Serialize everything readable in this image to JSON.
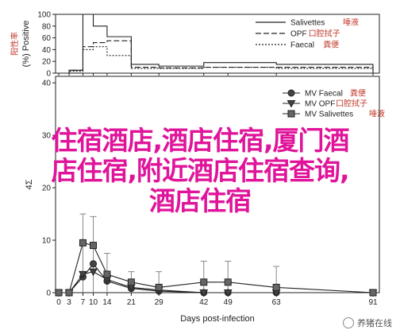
{
  "chart_data": [
    {
      "type": "line",
      "step": true,
      "ylabel": "(%) Positive",
      "ylabel_note": "阳性率",
      "ylim": [
        0,
        100
      ],
      "yticks": [
        0,
        20,
        40,
        60,
        80,
        100
      ],
      "x": [
        0,
        3,
        7,
        10,
        14,
        21,
        29,
        42,
        49,
        63,
        91
      ],
      "series": [
        {
          "name": "Salivettes",
          "note": "唾液",
          "style": "solid",
          "values": [
            0,
            5,
            100,
            80,
            62,
            15,
            12,
            18,
            18,
            15,
            0
          ]
        },
        {
          "name": "OPF",
          "note": "口腔拭子",
          "style": "dashed",
          "values": [
            0,
            5,
            45,
            52,
            55,
            10,
            9,
            10,
            10,
            10,
            0
          ]
        },
        {
          "name": "Faecal",
          "note": "粪便",
          "style": "dotted",
          "values": [
            0,
            3,
            40,
            45,
            30,
            8,
            8,
            10,
            10,
            8,
            0
          ]
        }
      ]
    },
    {
      "type": "line",
      "xlabel": "Days post-infection",
      "ylabel": "4Σ",
      "ylim": [
        0,
        40
      ],
      "yticks": [
        0,
        10,
        20,
        30,
        40
      ],
      "x": [
        0,
        3,
        7,
        10,
        14,
        21,
        29,
        42,
        49,
        63,
        91
      ],
      "series": [
        {
          "name": "MV Faecal",
          "note": "粪便",
          "marker": "circle",
          "values": [
            0,
            0,
            3,
            5.5,
            2.2,
            0.8,
            0.3,
            0,
            0,
            0,
            0
          ]
        },
        {
          "name": "MV OPF",
          "note": "口腔拭子",
          "marker": "triangle-down",
          "values": [
            0,
            0,
            3.5,
            4,
            2.5,
            1,
            0.5,
            0,
            0,
            0,
            0
          ]
        },
        {
          "name": "MV Salivettes",
          "note": "唾液",
          "marker": "square",
          "values": [
            0,
            0,
            9.5,
            9,
            3.5,
            2,
            1,
            2,
            2,
            1,
            0
          ]
        }
      ],
      "error_high": [
        0,
        0,
        15,
        14.5,
        7.5,
        4,
        4,
        6,
        6,
        5,
        0.5
      ]
    }
  ],
  "overlay": {
    "line1": "住宿酒店,酒店住宿,厦门酒",
    "line2": "店住宿,附近酒店住宿查询,",
    "line3": "酒店住宿"
  },
  "watermark": "养猪在线",
  "colors": {
    "overlay": "#e0149a",
    "note": "#c0392b",
    "ink": "#222222"
  }
}
